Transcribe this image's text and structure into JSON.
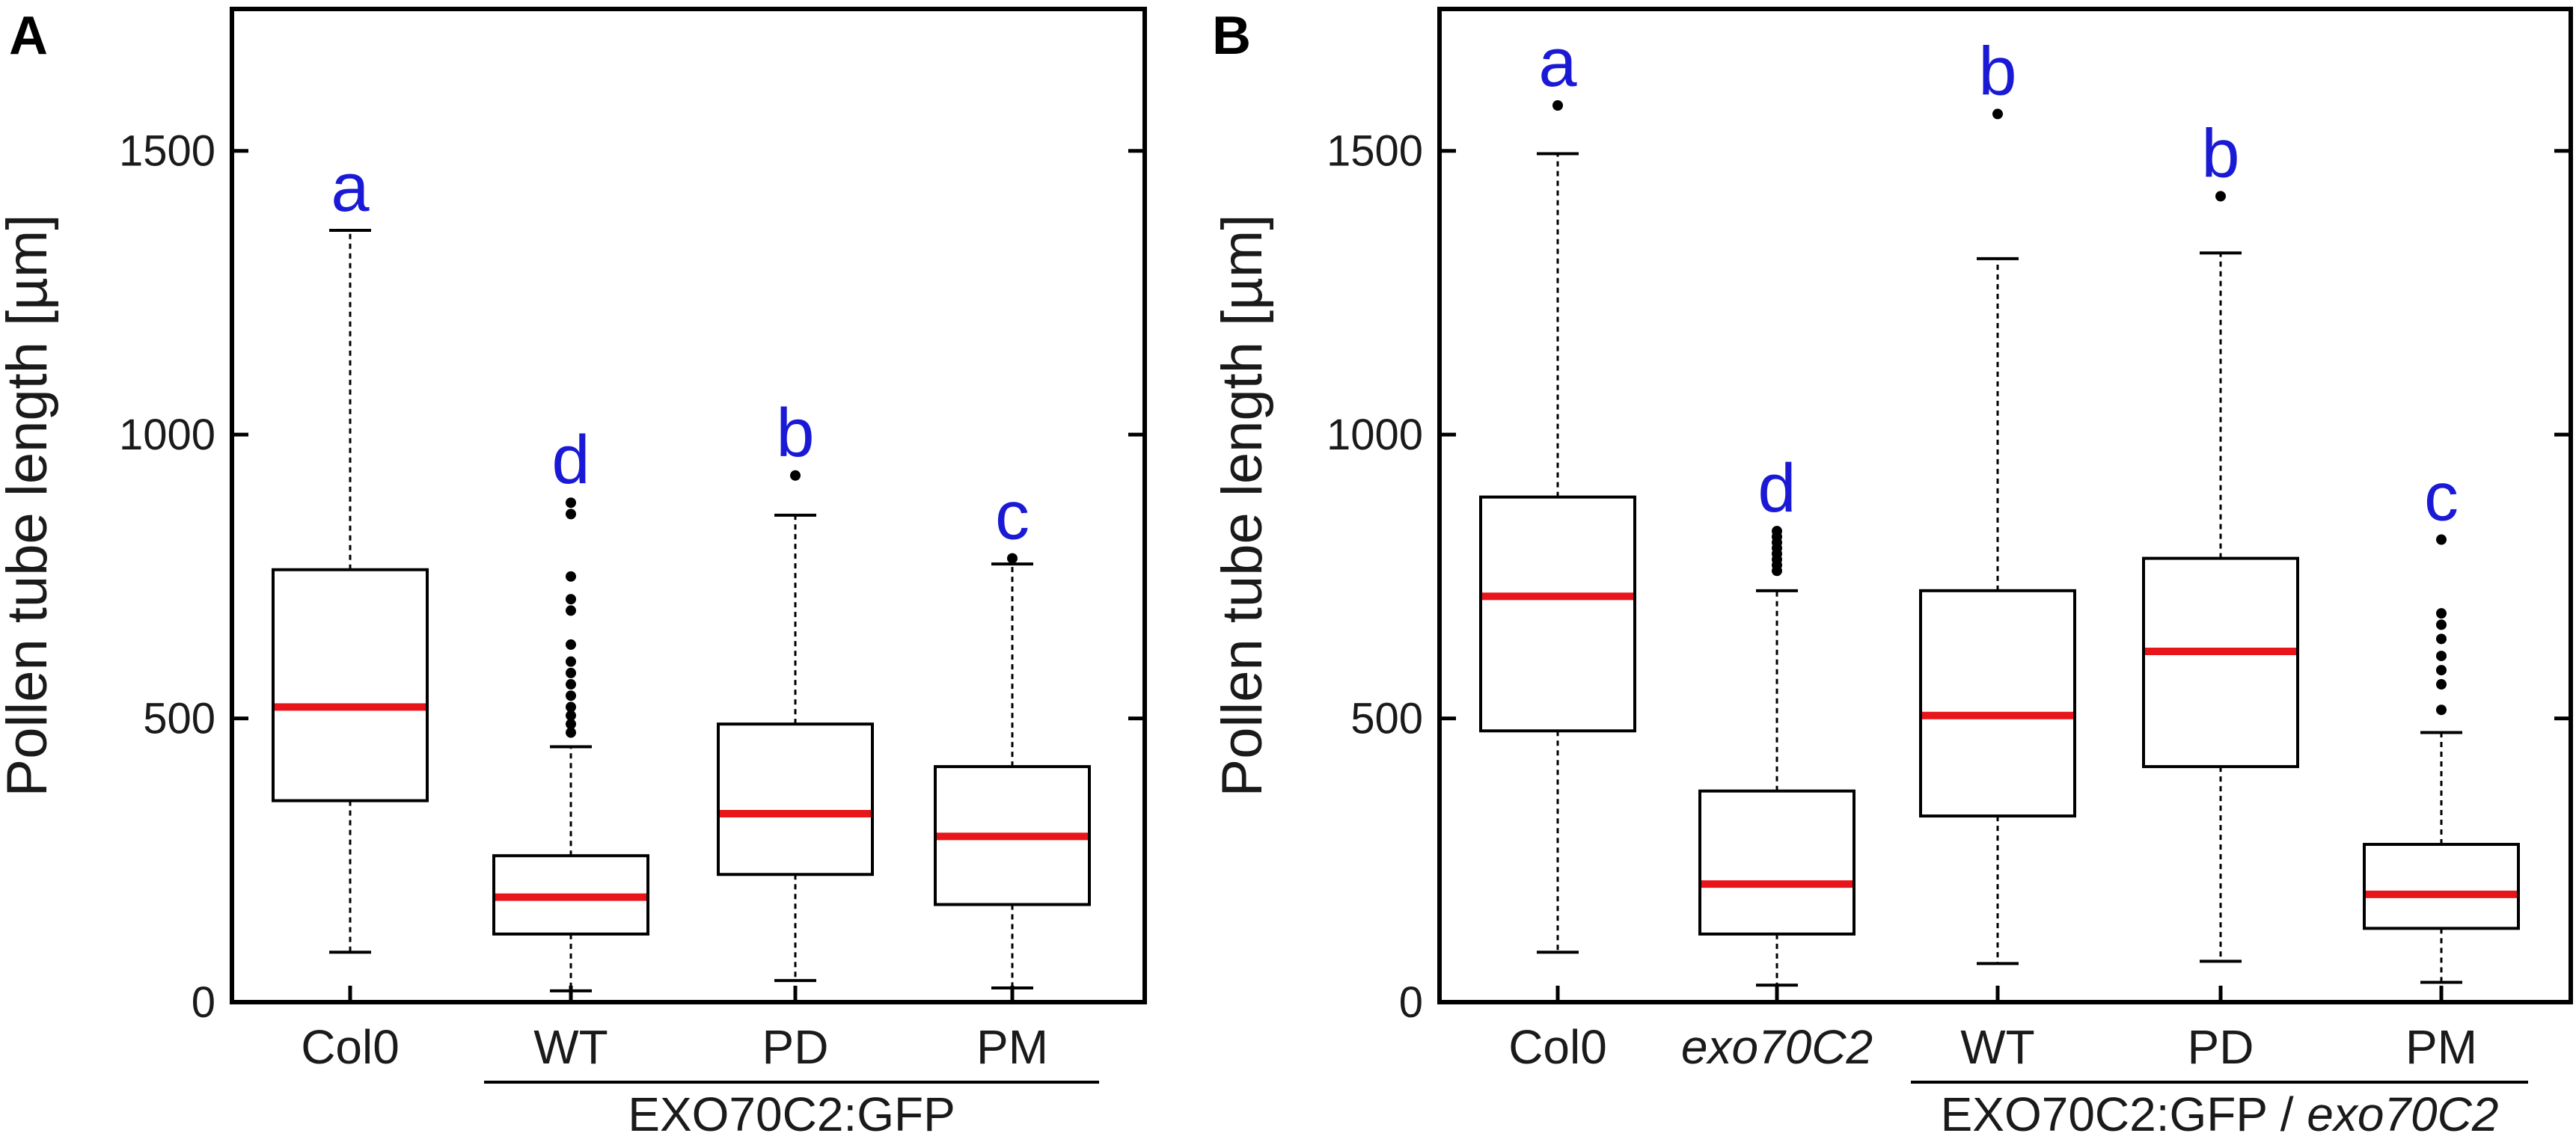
{
  "colors": {
    "median": "#e8151b",
    "significance": "#1a1ad6",
    "frame": "#000000"
  },
  "chart_data": [
    {
      "type": "boxplot",
      "panel_label": "A",
      "ylabel": "Pollen tube length [µm]",
      "ylim": [
        0,
        1750
      ],
      "yticks": [
        0,
        500,
        1000,
        1500
      ],
      "ytick_labels": [
        "0",
        "500",
        "1000",
        "1500"
      ],
      "categories": [
        "Col0",
        "WT",
        "PD",
        "PM"
      ],
      "group_label": {
        "text": "EXO70C2:GFP",
        "italic_suffix": "",
        "spans": [
          "WT",
          "PD",
          "PM"
        ]
      },
      "boxes": [
        {
          "label": "Col0",
          "italic": false,
          "whisker_low": 88,
          "q1": 355,
          "median": 520,
          "q3": 762,
          "whisker_high": 1360,
          "outliers": [],
          "letter": "a"
        },
        {
          "label": "WT",
          "italic": false,
          "whisker_low": 20,
          "q1": 120,
          "median": 185,
          "q3": 258,
          "whisker_high": 450,
          "outliers": [
            475,
            490,
            505,
            520,
            540,
            560,
            580,
            600,
            630,
            690,
            710,
            750,
            860,
            880
          ],
          "letter": "d"
        },
        {
          "label": "PD",
          "italic": false,
          "whisker_low": 38,
          "q1": 225,
          "median": 332,
          "q3": 490,
          "whisker_high": 858,
          "outliers": [
            928
          ],
          "letter": "b"
        },
        {
          "label": "PM",
          "italic": false,
          "whisker_low": 25,
          "q1": 172,
          "median": 292,
          "q3": 415,
          "whisker_high": 772,
          "outliers": [
            782
          ],
          "letter": "c"
        }
      ]
    },
    {
      "type": "boxplot",
      "panel_label": "B",
      "ylabel": "Pollen tube length [µm]",
      "ylim": [
        0,
        1750
      ],
      "yticks": [
        0,
        500,
        1000,
        1500
      ],
      "ytick_labels": [
        "0",
        "500",
        "1000",
        "1500"
      ],
      "categories": [
        "Col0",
        "exo70C2",
        "WT",
        "PD",
        "PM"
      ],
      "group_label": {
        "text": "EXO70C2:GFP / ",
        "italic_suffix": "exo70C2",
        "spans": [
          "WT",
          "PD",
          "PM"
        ]
      },
      "boxes": [
        {
          "label": "Col0",
          "italic": false,
          "whisker_low": 88,
          "q1": 478,
          "median": 715,
          "q3": 890,
          "whisker_high": 1495,
          "outliers": [
            1580
          ],
          "letter": "a"
        },
        {
          "label": "exo70C2",
          "italic": true,
          "whisker_low": 30,
          "q1": 120,
          "median": 208,
          "q3": 372,
          "whisker_high": 725,
          "outliers": [
            760,
            770,
            780,
            790,
            800,
            810,
            820,
            830
          ],
          "letter": "d"
        },
        {
          "label": "WT",
          "italic": false,
          "whisker_low": 68,
          "q1": 328,
          "median": 505,
          "q3": 725,
          "whisker_high": 1310,
          "outliers": [
            1565
          ],
          "letter": "b"
        },
        {
          "label": "PD",
          "italic": false,
          "whisker_low": 72,
          "q1": 415,
          "median": 618,
          "q3": 782,
          "whisker_high": 1320,
          "outliers": [
            1420
          ],
          "letter": "b"
        },
        {
          "label": "PM",
          "italic": false,
          "whisker_low": 35,
          "q1": 130,
          "median": 190,
          "q3": 278,
          "whisker_high": 475,
          "outliers": [
            515,
            560,
            585,
            610,
            640,
            665,
            685,
            815
          ],
          "letter": "c"
        }
      ]
    }
  ]
}
